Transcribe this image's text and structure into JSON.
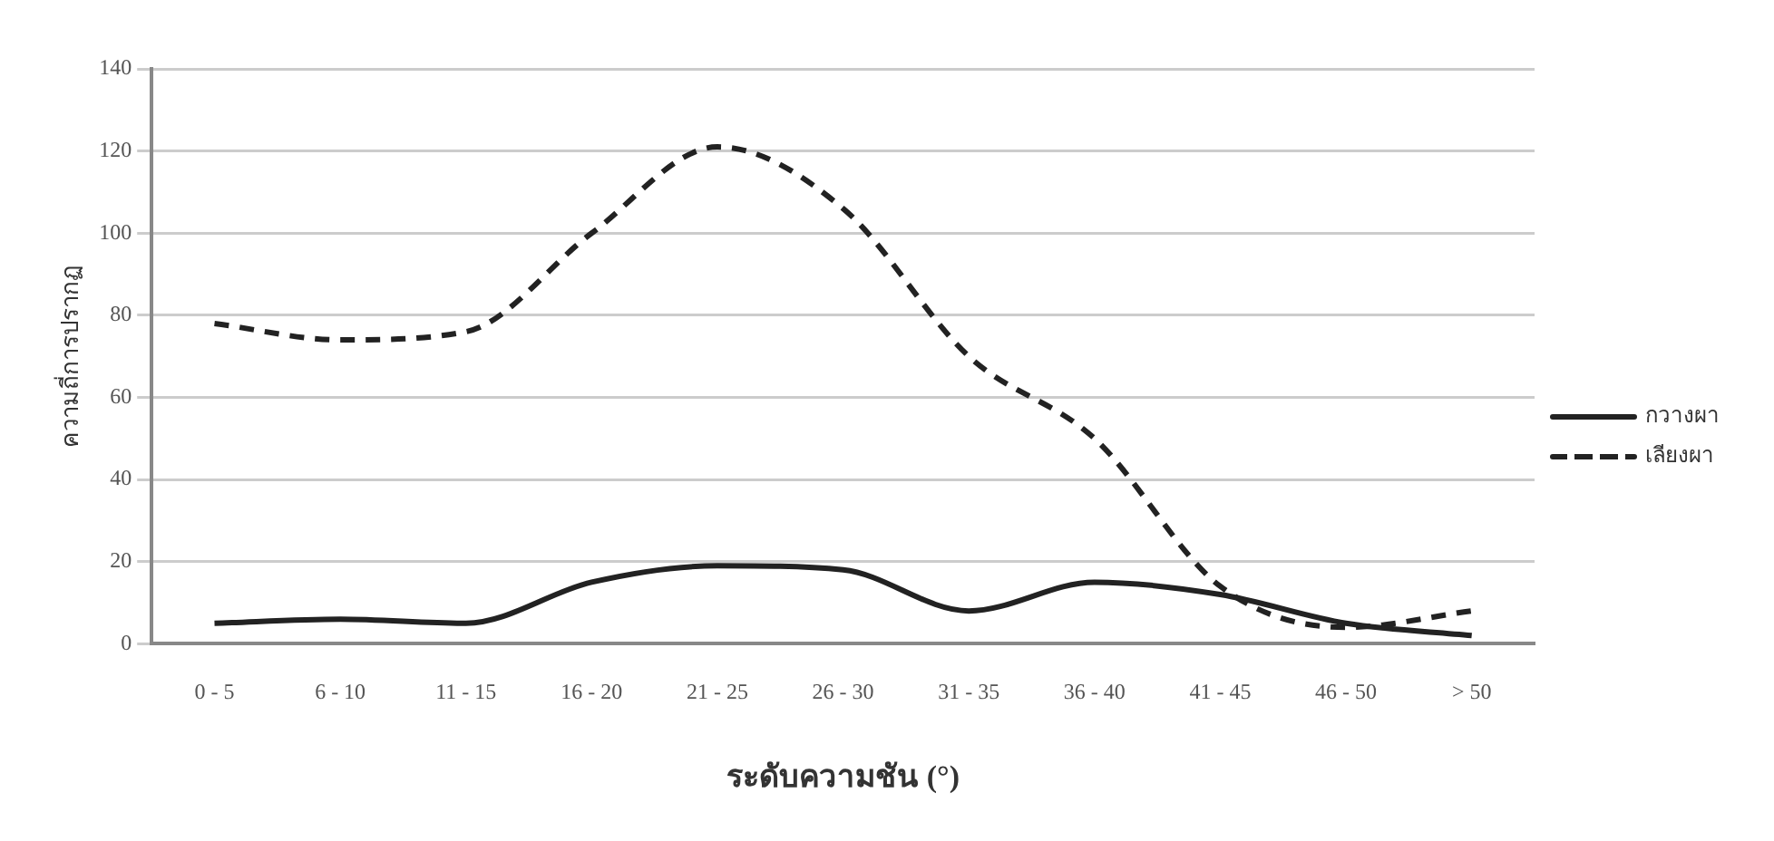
{
  "chart_data": {
    "type": "line",
    "xlabel": "ระดับความชัน (°)",
    "ylabel": "ความถี่การปรากฏ",
    "categories": [
      "0 - 5",
      "6 - 10",
      "11 - 15",
      "16 - 20",
      "21 - 25",
      "26 - 30",
      "31 - 35",
      "36 - 40",
      "41 - 45",
      "46 - 50",
      "> 50"
    ],
    "series": [
      {
        "name": "กวางผา",
        "color": "#222222",
        "line_style": "solid",
        "values": [
          5,
          6,
          5,
          15,
          19,
          18,
          8,
          15,
          12,
          5,
          2
        ]
      },
      {
        "name": "เลียงผา",
        "color": "#222222",
        "line_style": "dashed",
        "values": [
          78,
          74,
          76,
          100,
          121,
          106,
          70,
          50,
          14,
          4,
          8
        ]
      }
    ],
    "ylim": [
      0,
      140
    ],
    "yticks": [
      0,
      20,
      40,
      60,
      80,
      100,
      120,
      140
    ],
    "grid": "y",
    "legend": "right",
    "marker": "none"
  }
}
